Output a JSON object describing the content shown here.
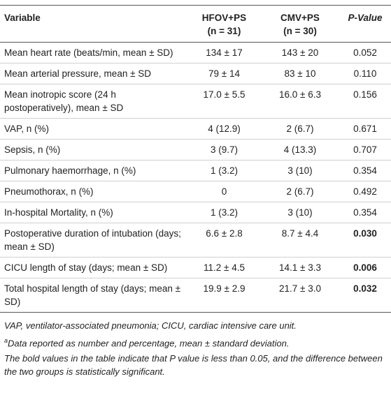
{
  "table": {
    "header": {
      "variable": "Variable",
      "group1": [
        "HFOV+PS",
        "(n = 31)"
      ],
      "group2": [
        "CMV+PS",
        "(n = 30)"
      ],
      "p_value": "P-Value"
    },
    "rows": [
      {
        "variable": "Mean heart rate (beats/min, mean ± SD)",
        "group1": "134 ± 17",
        "group2": "143 ± 20",
        "p_value": "0.052",
        "significant": false
      },
      {
        "variable": "Mean arterial pressure, mean ± SD",
        "group1": "79 ± 14",
        "group2": "83 ± 10",
        "p_value": "0.110",
        "significant": false
      },
      {
        "variable": "Mean inotropic score (24 h postoperatively), mean ± SD",
        "group1": "17.0 ± 5.5",
        "group2": "16.0 ± 6.3",
        "p_value": "0.156",
        "significant": false
      },
      {
        "variable": "VAP, n (%)",
        "group1": "4 (12.9)",
        "group2": "2 (6.7)",
        "p_value": "0.671",
        "significant": false
      },
      {
        "variable": "Sepsis, n (%)",
        "group1": "3 (9.7)",
        "group2": "4 (13.3)",
        "p_value": "0.707",
        "significant": false
      },
      {
        "variable": "Pulmonary haemorrhage, n (%)",
        "group1": "1 (3.2)",
        "group2": "3 (10)",
        "p_value": "0.354",
        "significant": false
      },
      {
        "variable": "Pneumothorax, n (%)",
        "group1": "0",
        "group2": "2 (6.7)",
        "p_value": "0.492",
        "significant": false
      },
      {
        "variable": "In-hospital Mortality, n (%)",
        "group1": "1 (3.2)",
        "group2": "3 (10)",
        "p_value": "0.354",
        "significant": false
      },
      {
        "variable": "Postoperative duration of intubation (days; mean ± SD)",
        "group1": "6.6 ± 2.8",
        "group2": "8.7 ± 4.4",
        "p_value": "0.030",
        "significant": true
      },
      {
        "variable": "CICU length of stay (days; mean ± SD)",
        "group1": "11.2 ± 4.5",
        "group2": "14.1 ± 3.3",
        "p_value": "0.006",
        "significant": true
      },
      {
        "variable": "Total hospital length of stay (days; mean ± SD)",
        "group1": "19.9 ± 2.9",
        "group2": "21.7 ± 3.0",
        "p_value": "0.032",
        "significant": true
      }
    ]
  },
  "footnotes": {
    "abbreviations": "VAP, ventilator-associated pneumonia; CICU, cardiac intensive care unit.",
    "data_note": {
      "marker": "a",
      "text": "Data reported as number and percentage, mean ± standard deviation."
    },
    "bold_note": "The bold values in the table indicate that P value is less than 0.05, and the difference between the two groups is statistically significant."
  }
}
